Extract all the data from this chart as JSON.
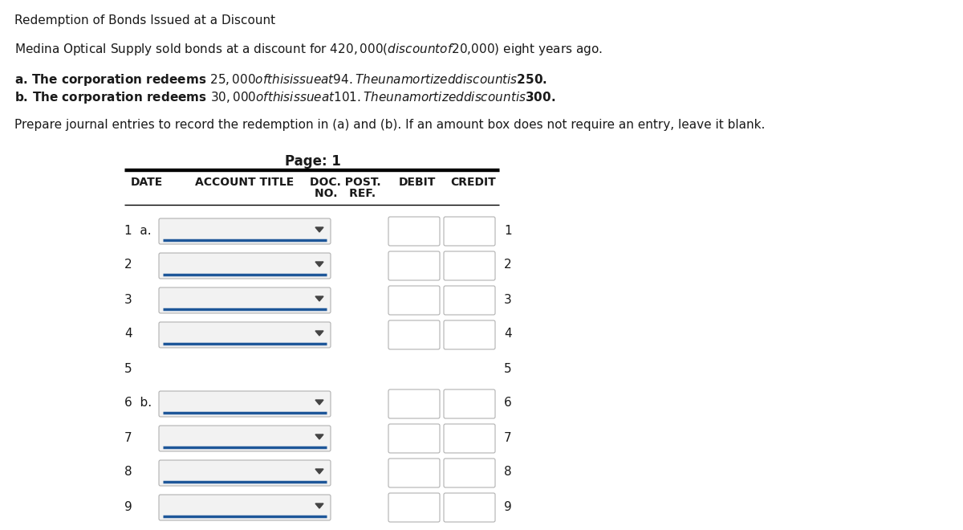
{
  "title": "Redemption of Bonds Issued at a Discount",
  "line1": "Medina Optical Supply sold bonds at a discount for $420,000 (discount of $20,000) eight years ago.",
  "line2a": "a. The corporation redeems $25,000 of this issue at 94. The unamortized discount is $250.",
  "line2b": "b. The corporation redeems $30,000 of this issue at 101. The unamortized discount is $300.",
  "line3": "Prepare journal entries to record the redemption in (a) and (b). If an amount box does not require an entry, leave it blank.",
  "page_label": "Page: 1",
  "row_labels_left": [
    "1  a.",
    "2",
    "3",
    "4",
    "5",
    "6  b.",
    "7",
    "8",
    "9"
  ],
  "row_labels_right": [
    "1",
    "2",
    "3",
    "4",
    "5",
    "6",
    "7",
    "8",
    "9"
  ],
  "rows_with_input": [
    0,
    1,
    2,
    3,
    5,
    6,
    7,
    8
  ],
  "rows_without_input": [
    4
  ],
  "bg_color": "#ffffff",
  "text_color": "#1a1a1a",
  "blue_line_color": "#1e5799",
  "header_line_color": "#000000",
  "input_box_border": "#b0b0b0",
  "input_box_fill": "#ffffff",
  "dropdown_fill": "#f2f2f2"
}
